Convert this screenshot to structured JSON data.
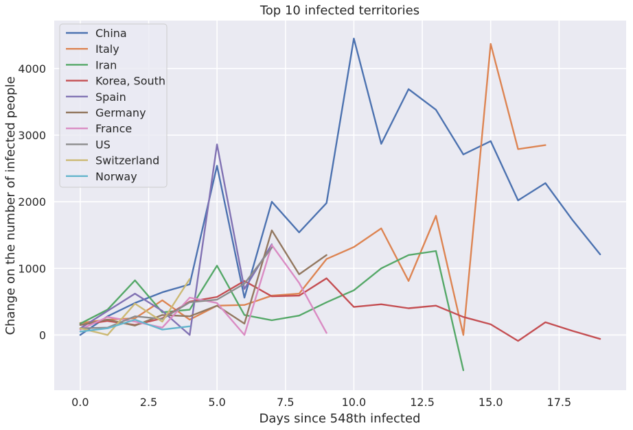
{
  "chart_data": {
    "type": "line",
    "title": "Top 10 infected territories",
    "xlabel": "Days since 548th infected",
    "ylabel": "Change on the number of infected people",
    "xlim": [
      -0.95,
      19.95
    ],
    "ylim": [
      -830,
      4720
    ],
    "xticks": [
      0.0,
      2.5,
      5.0,
      7.5,
      10.0,
      12.5,
      15.0,
      17.5
    ],
    "xtick_labels": [
      "0.0",
      "2.5",
      "5.0",
      "7.5",
      "10.0",
      "12.5",
      "15.0",
      "17.5"
    ],
    "yticks": [
      0,
      1000,
      2000,
      3000,
      4000
    ],
    "ytick_labels": [
      "0",
      "1000",
      "2000",
      "3000",
      "4000"
    ],
    "grid": true,
    "legend_position": "top-left",
    "background": "#eaeaf2",
    "series": [
      {
        "name": "China",
        "color": "#4c72b0",
        "x": [
          0,
          1,
          2,
          3,
          4,
          5,
          6,
          7,
          8,
          9,
          10,
          11,
          12,
          13,
          14,
          15,
          16,
          17,
          18,
          19
        ],
        "y": [
          0,
          280,
          480,
          640,
          760,
          2540,
          560,
          2000,
          1540,
          1980,
          4450,
          2870,
          3690,
          3380,
          2710,
          2910,
          2020,
          2280,
          1720,
          1210
        ]
      },
      {
        "name": "Italy",
        "color": "#dd8452",
        "x": [
          0,
          1,
          2,
          3,
          4,
          5,
          6,
          7,
          8,
          9,
          10,
          11,
          12,
          13,
          14,
          15,
          16,
          17
        ],
        "y": [
          180,
          230,
          250,
          520,
          230,
          440,
          450,
          590,
          620,
          1140,
          1320,
          1600,
          810,
          1790,
          0,
          4370,
          2790,
          2850
        ]
      },
      {
        "name": "Iran",
        "color": "#55a868",
        "x": [
          0,
          1,
          2,
          3,
          4,
          5,
          6,
          7,
          8,
          9,
          10,
          11,
          12,
          13,
          14
        ],
        "y": [
          170,
          380,
          820,
          340,
          380,
          1040,
          300,
          220,
          290,
          490,
          670,
          1000,
          1200,
          1260,
          -530
        ]
      },
      {
        "name": "Korea, South",
        "color": "#c44e52",
        "x": [
          0,
          1,
          2,
          3,
          4,
          5,
          6,
          7,
          8,
          9,
          10,
          11,
          12,
          13,
          14,
          15,
          16,
          17,
          18,
          19
        ],
        "y": [
          150,
          210,
          150,
          250,
          500,
          570,
          810,
          580,
          590,
          850,
          420,
          460,
          400,
          440,
          270,
          160,
          -90,
          190,
          60,
          -60
        ]
      },
      {
        "name": "Spain",
        "color": "#8172b3",
        "x": [
          0,
          1,
          2,
          3,
          4,
          5,
          6,
          7
        ],
        "y": [
          100,
          360,
          620,
          360,
          0,
          2860,
          690,
          1360
        ]
      },
      {
        "name": "Germany",
        "color": "#937860",
        "x": [
          0,
          1,
          2,
          3,
          4,
          5,
          6,
          7,
          8,
          9
        ],
        "y": [
          150,
          230,
          140,
          300,
          280,
          440,
          170,
          1570,
          910,
          1200
        ]
      },
      {
        "name": "France",
        "color": "#da8bc3",
        "x": [
          0,
          1,
          2,
          3,
          4,
          5,
          6,
          7,
          8,
          9
        ],
        "y": [
          80,
          270,
          200,
          110,
          560,
          480,
          0,
          1350,
          780,
          30
        ]
      },
      {
        "name": "US",
        "color": "#8c8c8c",
        "x": [
          0,
          1,
          2,
          3,
          4,
          5,
          6,
          7
        ],
        "y": [
          100,
          110,
          280,
          240,
          490,
          530,
          770,
          1310
        ]
      },
      {
        "name": "Switzerland",
        "color": "#ccb974",
        "x": [
          0,
          1,
          2,
          3,
          4
        ],
        "y": [
          100,
          0,
          470,
          200,
          840
        ]
      },
      {
        "name": "Norway",
        "color": "#64b5cd",
        "x": [
          0,
          1,
          2,
          3,
          4
        ],
        "y": [
          50,
          100,
          230,
          80,
          130
        ]
      }
    ]
  }
}
